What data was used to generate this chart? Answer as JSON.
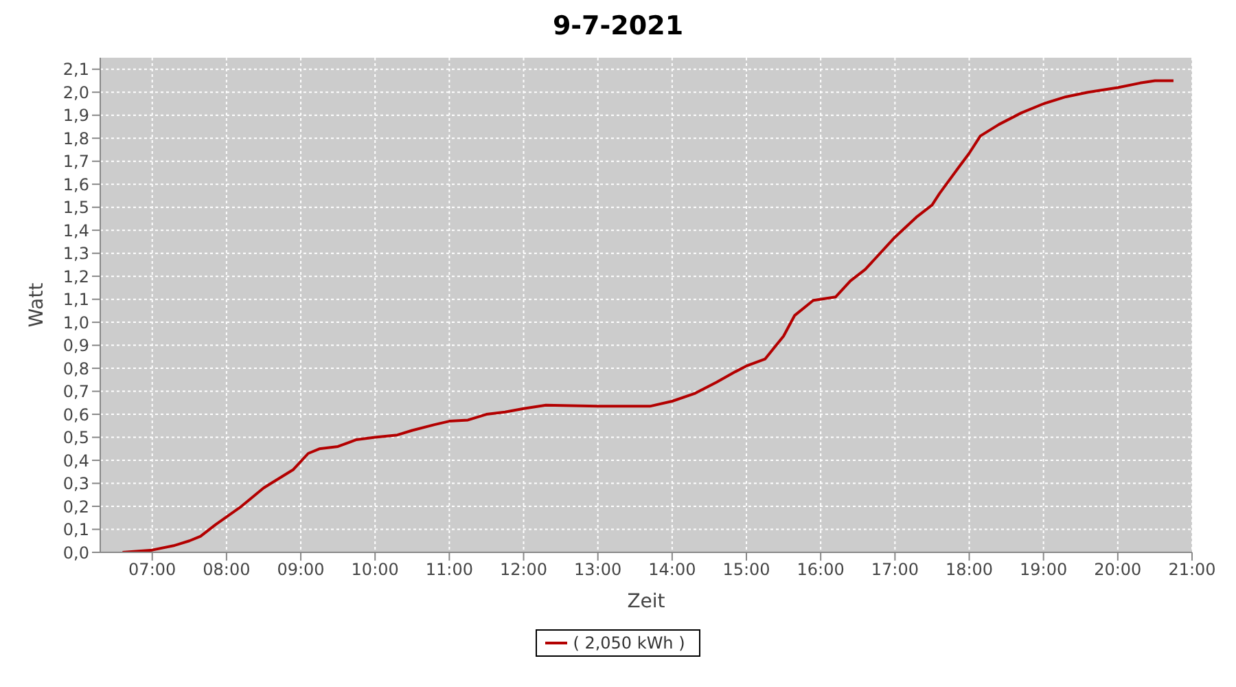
{
  "chart_data": {
    "type": "line",
    "title": "9-7-2021",
    "xlabel": "Zeit",
    "ylabel": "Watt",
    "x": [
      6.6,
      7.0,
      7.3,
      7.5,
      7.65,
      7.85,
      8.2,
      8.5,
      8.6,
      8.9,
      9.1,
      9.25,
      9.5,
      9.75,
      10.0,
      10.3,
      10.5,
      10.8,
      11.0,
      11.25,
      11.5,
      11.75,
      12.0,
      12.3,
      13.0,
      13.7,
      14.0,
      14.3,
      14.6,
      14.85,
      15.0,
      15.25,
      15.5,
      15.65,
      15.9,
      16.2,
      16.4,
      16.6,
      17.0,
      17.3,
      17.5,
      17.6,
      17.85,
      18.0,
      18.15,
      18.4,
      18.7,
      19.0,
      19.3,
      19.6,
      20.0,
      20.3,
      20.5,
      20.75
    ],
    "series": [
      {
        "name": "( 2,050 kWh )",
        "color": "#b30000",
        "values": [
          0,
          0.01,
          0.03,
          0.05,
          0.07,
          0.12,
          0.2,
          0.28,
          0.3,
          0.36,
          0.43,
          0.45,
          0.46,
          0.49,
          0.5,
          0.51,
          0.53,
          0.555,
          0.57,
          0.575,
          0.6,
          0.61,
          0.625,
          0.64,
          0.635,
          0.635,
          0.657,
          0.69,
          0.74,
          0.785,
          0.81,
          0.84,
          0.94,
          1.03,
          1.095,
          1.11,
          1.18,
          1.23,
          1.37,
          1.46,
          1.51,
          1.56,
          1.67,
          1.735,
          1.81,
          1.86,
          1.91,
          1.95,
          1.98,
          2.0,
          2.02,
          2.04,
          2.05,
          2.05
        ]
      }
    ],
    "xlim": [
      6.3,
      21.0
    ],
    "xticks": [
      {
        "value": 7,
        "label": "07:00"
      },
      {
        "value": 8,
        "label": "08:00"
      },
      {
        "value": 9,
        "label": "09:00"
      },
      {
        "value": 10,
        "label": "10:00"
      },
      {
        "value": 11,
        "label": "11:00"
      },
      {
        "value": 12,
        "label": "12:00"
      },
      {
        "value": 13,
        "label": "13:00"
      },
      {
        "value": 14,
        "label": "14:00"
      },
      {
        "value": 15,
        "label": "15:00"
      },
      {
        "value": 16,
        "label": "16:00"
      },
      {
        "value": 17,
        "label": "17:00"
      },
      {
        "value": 18,
        "label": "18:00"
      },
      {
        "value": 19,
        "label": "19:00"
      },
      {
        "value": 20,
        "label": "20:00"
      },
      {
        "value": 21,
        "label": "21:00"
      }
    ],
    "ylim": [
      0,
      2.15
    ],
    "yticks": [
      {
        "value": 0,
        "label": "0,0"
      },
      {
        "value": 0.1,
        "label": "0,1"
      },
      {
        "value": 0.2,
        "label": "0,2"
      },
      {
        "value": 0.3,
        "label": "0,3"
      },
      {
        "value": 0.4,
        "label": "0,4"
      },
      {
        "value": 0.5,
        "label": "0,5"
      },
      {
        "value": 0.6,
        "label": "0,6"
      },
      {
        "value": 0.7,
        "label": "0,7"
      },
      {
        "value": 0.8,
        "label": "0,8"
      },
      {
        "value": 0.9,
        "label": "0,9"
      },
      {
        "value": 1.0,
        "label": "1,0"
      },
      {
        "value": 1.1,
        "label": "1,1"
      },
      {
        "value": 1.2,
        "label": "1,2"
      },
      {
        "value": 1.3,
        "label": "1,3"
      },
      {
        "value": 1.4,
        "label": "1,4"
      },
      {
        "value": 1.5,
        "label": "1,5"
      },
      {
        "value": 1.6,
        "label": "1,6"
      },
      {
        "value": 1.7,
        "label": "1,7"
      },
      {
        "value": 1.8,
        "label": "1,8"
      },
      {
        "value": 1.9,
        "label": "1,9"
      },
      {
        "value": 2.0,
        "label": "2,0"
      },
      {
        "value": 2.1,
        "label": "2,1"
      }
    ],
    "grid": true,
    "legend": "bottom",
    "marker": "none",
    "line_style": "solid"
  }
}
